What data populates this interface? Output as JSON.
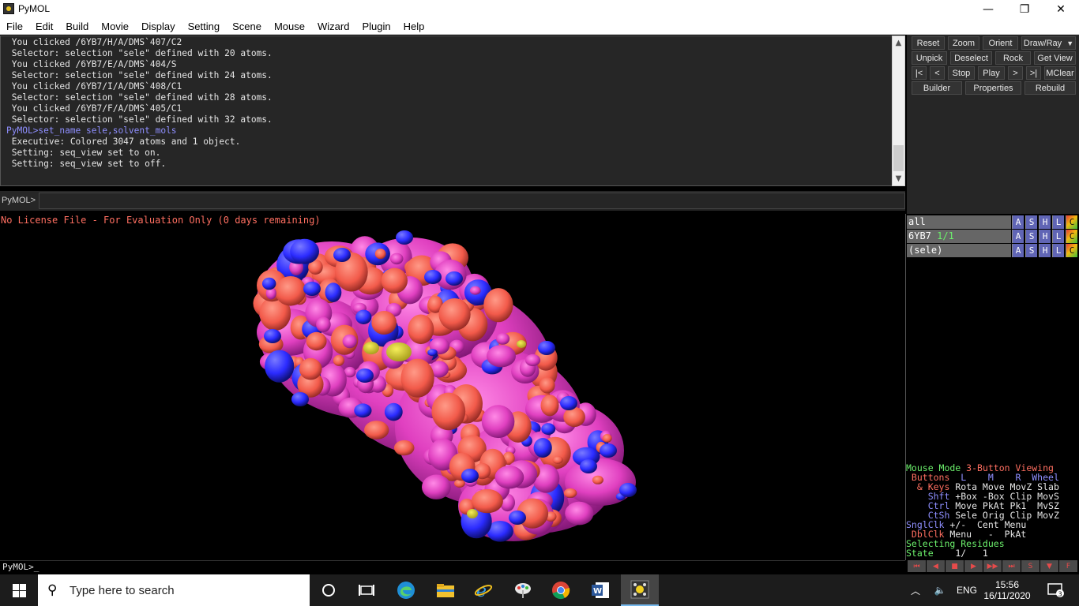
{
  "window": {
    "title": "PyMOL",
    "minimize": "—",
    "maximize": "❐",
    "close": "✕"
  },
  "menu": [
    "File",
    "Edit",
    "Build",
    "Movie",
    "Display",
    "Setting",
    "Scene",
    "Mouse",
    "Wizard",
    "Plugin",
    "Help"
  ],
  "console": {
    "lines": [
      {
        "text": " You clicked /6YB7/H/A/DMS`407/C2",
        "cmd": false
      },
      {
        "text": " Selector: selection \"sele\" defined with 20 atoms.",
        "cmd": false
      },
      {
        "text": " You clicked /6YB7/E/A/DMS`404/S",
        "cmd": false
      },
      {
        "text": " Selector: selection \"sele\" defined with 24 atoms.",
        "cmd": false
      },
      {
        "text": " You clicked /6YB7/I/A/DMS`408/C1",
        "cmd": false
      },
      {
        "text": " Selector: selection \"sele\" defined with 28 atoms.",
        "cmd": false
      },
      {
        "text": " You clicked /6YB7/F/A/DMS`405/C1",
        "cmd": false
      },
      {
        "text": " Selector: selection \"sele\" defined with 32 atoms.",
        "cmd": false
      },
      {
        "text": "PyMOL>set_name sele,solvent_mols",
        "cmd": true
      },
      {
        "text": " Executive: Colored 3047 atoms and 1 object.",
        "cmd": false
      },
      {
        "text": " Setting: seq_view set to on.",
        "cmd": false
      },
      {
        "text": " Setting: seq_view set to off.",
        "cmd": false
      }
    ]
  },
  "command": {
    "label": "PyMOL>",
    "value": ""
  },
  "buttons": {
    "reset": "Reset",
    "zoom": "Zoom",
    "orient": "Orient",
    "draw_ray": "Draw/Ray",
    "unpick": "Unpick",
    "deselect": "Deselect",
    "rock": "Rock",
    "get_view": "Get View",
    "first": "|<",
    "prev": "<",
    "stop": "Stop",
    "play": "Play",
    "next": ">",
    "last": ">|",
    "mclear": "MClear",
    "builder": "Builder",
    "properties": "Properties",
    "rebuild": "Rebuild"
  },
  "viewport": {
    "license": "No License File - For Evaluation Only (0 days remaining)"
  },
  "objects": [
    {
      "name": "all",
      "frac": ""
    },
    {
      "name": "6YB7",
      "frac": "1/1"
    },
    {
      "name": "(sele)",
      "frac": ""
    }
  ],
  "obj_buttons": [
    "A",
    "S",
    "H",
    "L",
    "C"
  ],
  "mouse_mode": {
    "title_a": "Mouse Mode",
    "title_b": " 3-Button Viewing",
    "buttons_hdr": " Buttons",
    "buttons_cols": "  L    M    R  Wheel",
    "keys_hdr": "  & Keys",
    "keys_vals": " Rota Move MovZ Slab",
    "shft_hdr": "    Shft",
    "shft_vals": " +Box -Box Clip MovS",
    "ctrl_hdr": "    Ctrl",
    "ctrl_vals": " Move PkAt Pk1  MvSZ",
    "ctsh_hdr": "    CtSh",
    "ctsh_vals": " Sele Orig Clip MovZ",
    "sngl_hdr": "SnglClk",
    "sngl_vals": " +/-  Cent Menu",
    "dbl_hdr": " DblClk",
    "dbl_vals": " Menu   -  PkAt",
    "selecting": "Selecting Residues",
    "state_lbl": "State",
    "state_val": "    1/   1"
  },
  "bottom_cmd": "PyMOL>_",
  "movie_controls": [
    "⏮",
    "◀",
    "■",
    "▶",
    "▶▶",
    "⏭",
    "S",
    "▼",
    "F"
  ],
  "taskbar": {
    "search_placeholder": "Type here to search",
    "language": "ENG",
    "time": "15:56",
    "date": "16/11/2020",
    "notifications": "3"
  },
  "colors": {
    "surface_pink": "#e040c0",
    "surface_red": "#f25a4a",
    "surface_blue": "#2b2bff",
    "surface_yellow": "#c9c020",
    "console_bg": "#262626"
  }
}
